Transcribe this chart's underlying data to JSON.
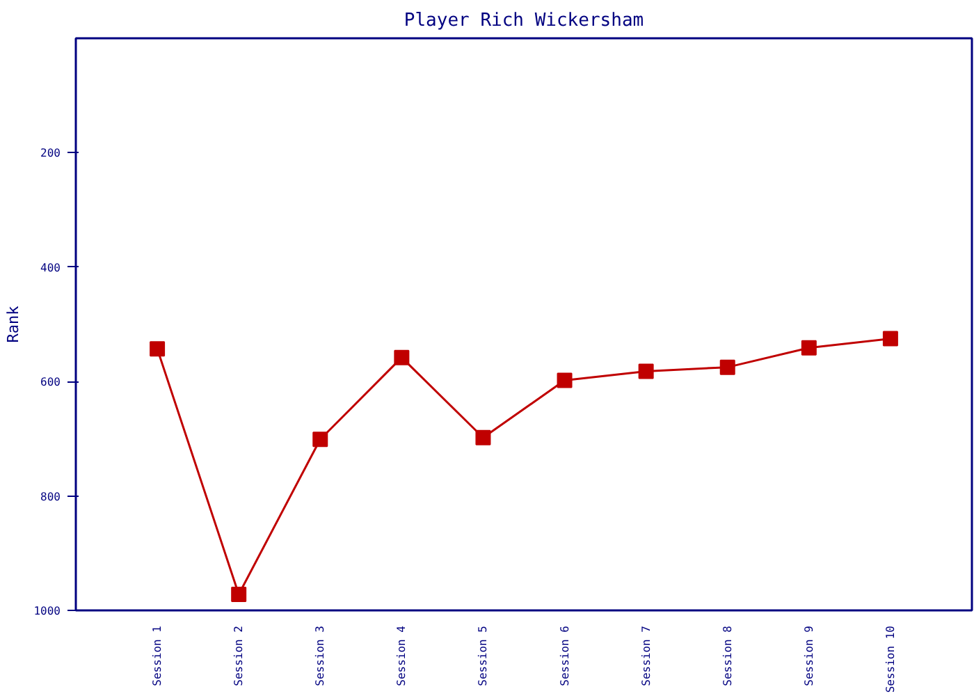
{
  "chart_data": {
    "type": "line",
    "title": "Player Rich Wickersham",
    "ylabel": "Rank",
    "categories": [
      "Session 1",
      "Session 2",
      "Session 3",
      "Session 4",
      "Session 5",
      "Session 6",
      "Session 7",
      "Session 8",
      "Session 9",
      "Session 10"
    ],
    "series": [
      {
        "color": "#c00000",
        "values": [
          543,
          972,
          701,
          558,
          698,
          598,
          582,
          575,
          541,
          525
        ]
      }
    ],
    "ylim": [
      1000,
      0
    ],
    "yticks": [
      200,
      400,
      600,
      800,
      1000
    ],
    "marker": "square",
    "line_style": "solid",
    "grid": false
  }
}
